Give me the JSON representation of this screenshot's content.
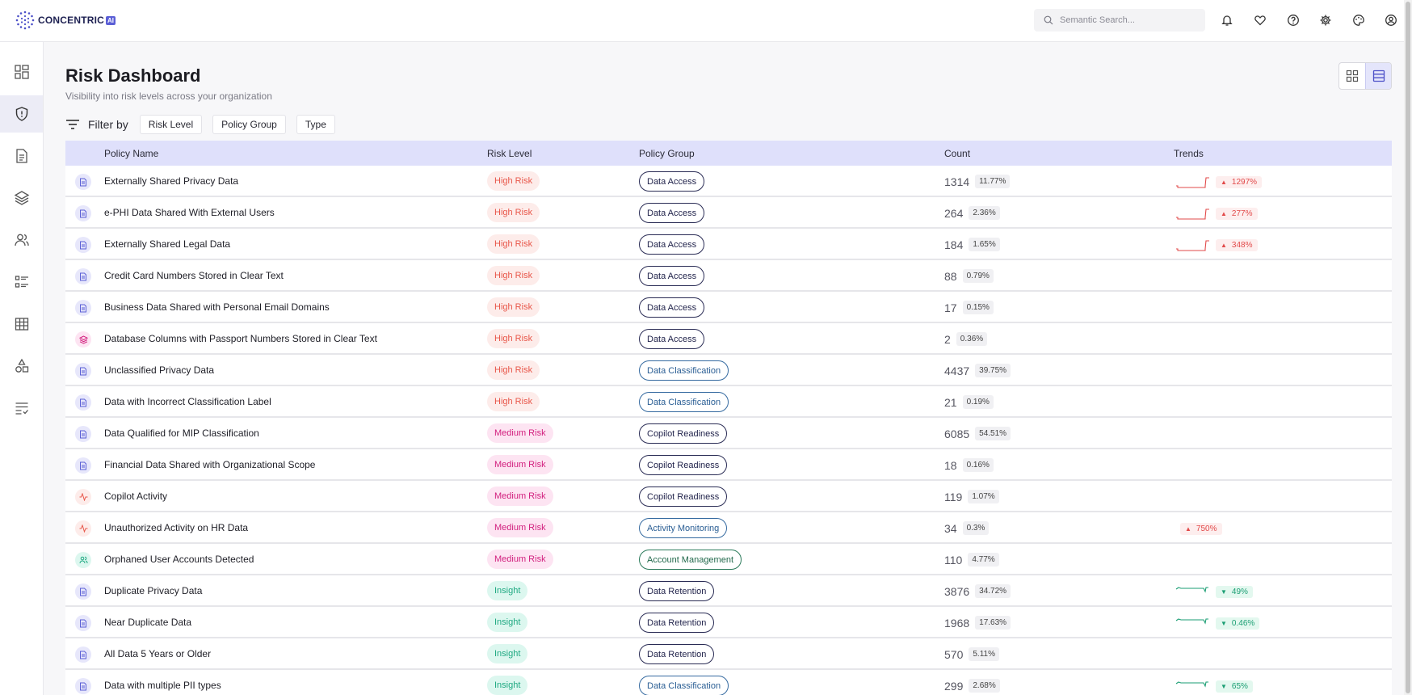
{
  "app": {
    "brand": "CONCENTRIC",
    "brand_badge": "AI"
  },
  "search": {
    "placeholder": "Semantic Search..."
  },
  "page": {
    "title": "Risk Dashboard",
    "subtitle": "Visibility into risk levels across your organization"
  },
  "filters": {
    "label": "Filter by",
    "chips": [
      "Risk Level",
      "Policy Group",
      "Type"
    ]
  },
  "table": {
    "headers": {
      "name": "Policy Name",
      "risk": "Risk Level",
      "group": "Policy Group",
      "count": "Count",
      "trends": "Trends"
    },
    "rows": [
      {
        "icon": "document-icon",
        "name": "Externally Shared Privacy Data",
        "risk": "High Risk",
        "group": "Data Access",
        "count": "1314",
        "pct": "11.77%",
        "trend": "1297%",
        "dir": "up",
        "spark": "line"
      },
      {
        "icon": "document-icon",
        "name": "e-PHI Data Shared With External Users",
        "risk": "High Risk",
        "group": "Data Access",
        "count": "264",
        "pct": "2.36%",
        "trend": "277%",
        "dir": "up",
        "spark": "line"
      },
      {
        "icon": "document-icon",
        "name": "Externally Shared Legal Data",
        "risk": "High Risk",
        "group": "Data Access",
        "count": "184",
        "pct": "1.65%",
        "trend": "348%",
        "dir": "up",
        "spark": "line"
      },
      {
        "icon": "document-icon",
        "name": "Credit Card Numbers Stored in Clear Text",
        "risk": "High Risk",
        "group": "Data Access",
        "count": "88",
        "pct": "0.79%"
      },
      {
        "icon": "document-icon",
        "name": "Business Data Shared with Personal Email Domains",
        "risk": "High Risk",
        "group": "Data Access",
        "count": "17",
        "pct": "0.15%"
      },
      {
        "icon": "database-icon",
        "name": "Database Columns with Passport Numbers Stored in Clear Text",
        "risk": "High Risk",
        "group": "Data Access",
        "count": "2",
        "pct": "0.36%"
      },
      {
        "icon": "document-icon",
        "name": "Unclassified Privacy Data",
        "risk": "High Risk",
        "group": "Data Classification",
        "count": "4437",
        "pct": "39.75%"
      },
      {
        "icon": "document-icon",
        "name": "Data with Incorrect Classification Label",
        "risk": "High Risk",
        "group": "Data Classification",
        "count": "21",
        "pct": "0.19%"
      },
      {
        "icon": "document-icon",
        "name": "Data Qualified for MIP Classification",
        "risk": "Medium Risk",
        "group": "Copilot Readiness",
        "count": "6085",
        "pct": "54.51%"
      },
      {
        "icon": "document-icon",
        "name": "Financial Data Shared with Organizational Scope",
        "risk": "Medium Risk",
        "group": "Copilot Readiness",
        "count": "18",
        "pct": "0.16%"
      },
      {
        "icon": "activity-icon",
        "name": "Copilot Activity",
        "risk": "Medium Risk",
        "group": "Copilot Readiness",
        "count": "119",
        "pct": "1.07%"
      },
      {
        "icon": "activity-icon",
        "name": "Unauthorized Activity on HR Data",
        "risk": "Medium Risk",
        "group": "Activity Monitoring",
        "count": "34",
        "pct": "0.3%",
        "trend": "750%",
        "dir": "up",
        "spark": "none"
      },
      {
        "icon": "users-icon",
        "name": "Orphaned User Accounts Detected",
        "risk": "Medium Risk",
        "group": "Account Management",
        "count": "110",
        "pct": "4.77%"
      },
      {
        "icon": "document-icon",
        "name": "Duplicate Privacy Data",
        "risk": "Insight",
        "group": "Data Retention",
        "count": "3876",
        "pct": "34.72%",
        "trend": "49%",
        "dir": "down",
        "spark": "line"
      },
      {
        "icon": "document-icon",
        "name": "Near Duplicate Data",
        "risk": "Insight",
        "group": "Data Retention",
        "count": "1968",
        "pct": "17.63%",
        "trend": "0.46%",
        "dir": "down",
        "spark": "line"
      },
      {
        "icon": "document-icon",
        "name": "All Data 5 Years or Older",
        "risk": "Insight",
        "group": "Data Retention",
        "count": "570",
        "pct": "5.11%"
      },
      {
        "icon": "document-icon",
        "name": "Data with multiple PII types",
        "risk": "Insight",
        "group": "Data Classification",
        "count": "299",
        "pct": "2.68%",
        "trend": "65%",
        "dir": "down",
        "spark": "line"
      }
    ]
  },
  "colors": {
    "accent": "#5b5fd6",
    "header_bg": "#dfe0fb",
    "high": "#e8574a",
    "medium": "#d21f7e",
    "insight": "#1fa982"
  }
}
